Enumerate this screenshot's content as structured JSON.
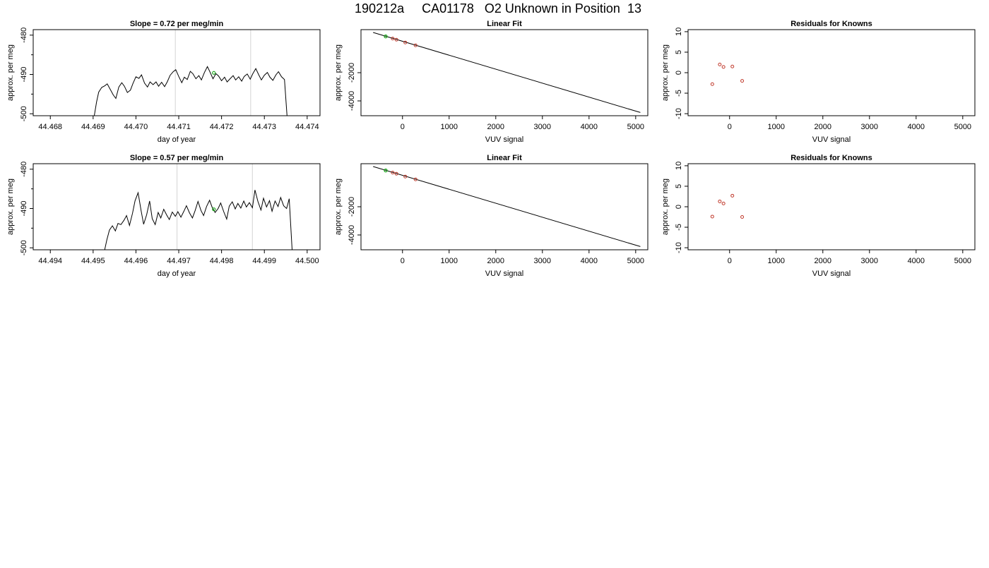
{
  "title": "190212a     CA01178   O2 Unknown in Position  13",
  "colors": {
    "trace": "#000000",
    "vline": "#d3d3d3",
    "known": "#c0392b",
    "unknown": "#22aa22"
  },
  "chart_data": [
    {
      "type": "line",
      "title": "Slope =  0.72  per meg/min",
      "xlabel": "day of year",
      "ylabel": "approx. per meg",
      "xlim": [
        44.4676,
        44.4743
      ],
      "ylim": [
        -500.5,
        -478.6
      ],
      "xticks": [
        "44.468",
        "44.469",
        "44.470",
        "44.471",
        "44.472",
        "44.473",
        "44.474"
      ],
      "yticks": [
        "-500",
        "-490",
        "-480"
      ],
      "vlines": [
        44.47092,
        44.47268
      ],
      "unknown_point": {
        "x": 44.47182,
        "y": -489.6
      },
      "trace": [
        [
          44.46902,
          -501
        ],
        [
          44.46908,
          -497
        ],
        [
          44.46913,
          -494.5
        ],
        [
          44.4692,
          -493.3
        ],
        [
          44.46927,
          -492.9
        ],
        [
          44.46933,
          -492.4
        ],
        [
          44.4694,
          -493.8
        ],
        [
          44.46947,
          -495.2
        ],
        [
          44.46953,
          -496.1
        ],
        [
          44.4696,
          -493.2
        ],
        [
          44.46967,
          -492.1
        ],
        [
          44.46973,
          -493.0
        ],
        [
          44.4698,
          -494.6
        ],
        [
          44.46987,
          -494.0
        ],
        [
          44.46993,
          -492.3
        ],
        [
          44.47,
          -490.6
        ],
        [
          44.47007,
          -491.0
        ],
        [
          44.47013,
          -490.1
        ],
        [
          44.4702,
          -492.2
        ],
        [
          44.47027,
          -493.2
        ],
        [
          44.47033,
          -491.9
        ],
        [
          44.4704,
          -492.6
        ],
        [
          44.47047,
          -491.9
        ],
        [
          44.47053,
          -493.0
        ],
        [
          44.4706,
          -492.0
        ],
        [
          44.47067,
          -493.1
        ],
        [
          44.47073,
          -491.9
        ],
        [
          44.4708,
          -490.2
        ],
        [
          44.47087,
          -489.3
        ],
        [
          44.47093,
          -488.8
        ],
        [
          44.471,
          -490.5
        ],
        [
          44.47107,
          -492.1
        ],
        [
          44.47113,
          -490.7
        ],
        [
          44.4712,
          -491.3
        ],
        [
          44.47127,
          -489.2
        ],
        [
          44.47133,
          -489.8
        ],
        [
          44.4714,
          -491.1
        ],
        [
          44.47147,
          -490.3
        ],
        [
          44.47153,
          -491.4
        ],
        [
          44.4716,
          -489.5
        ],
        [
          44.47167,
          -488.0
        ],
        [
          44.47173,
          -489.4
        ],
        [
          44.4718,
          -491.1
        ],
        [
          44.47187,
          -489.8
        ],
        [
          44.47193,
          -490.4
        ],
        [
          44.472,
          -491.6
        ],
        [
          44.47207,
          -490.7
        ],
        [
          44.47213,
          -491.9
        ],
        [
          44.4722,
          -491.1
        ],
        [
          44.47227,
          -490.3
        ],
        [
          44.47233,
          -491.4
        ],
        [
          44.4724,
          -490.6
        ],
        [
          44.47247,
          -491.7
        ],
        [
          44.47253,
          -490.5
        ],
        [
          44.4726,
          -489.9
        ],
        [
          44.47267,
          -491.2
        ],
        [
          44.47273,
          -489.8
        ],
        [
          44.4728,
          -488.5
        ],
        [
          44.47287,
          -490.1
        ],
        [
          44.47293,
          -491.4
        ],
        [
          44.473,
          -490.2
        ],
        [
          44.47307,
          -489.5
        ],
        [
          44.47313,
          -490.7
        ],
        [
          44.4732,
          -491.5
        ],
        [
          44.47327,
          -490.1
        ],
        [
          44.47333,
          -489.3
        ],
        [
          44.4734,
          -490.6
        ],
        [
          44.47347,
          -491.3
        ],
        [
          44.47353,
          -500.5
        ]
      ]
    },
    {
      "type": "scatter",
      "title": "Linear Fit",
      "xlabel": "VUV signal",
      "ylabel": "approx. per meg",
      "xlim": [
        -890,
        5260
      ],
      "ylim": [
        -5050,
        1050
      ],
      "xticks": [
        0,
        1000,
        2000,
        3000,
        4000,
        5000
      ],
      "yticks": [
        -4000,
        -2000
      ],
      "fit_line": [
        [
          -630,
          850
        ],
        [
          5100,
          -4820
        ]
      ],
      "knowns": [
        [
          -210,
          420
        ],
        [
          -130,
          340
        ],
        [
          60,
          140
        ],
        [
          280,
          -60
        ]
      ],
      "unknown": [
        -360,
        570
      ]
    },
    {
      "type": "scatter",
      "title": "Residuals for Knowns",
      "xlabel": "VUV signal",
      "ylabel": "approx. per meg",
      "xlim": [
        -890,
        5260
      ],
      "ylim": [
        -10.5,
        10.5
      ],
      "xticks": [
        0,
        1000,
        2000,
        3000,
        4000,
        5000
      ],
      "yticks": [
        -10,
        -5,
        0,
        5,
        10
      ],
      "knowns": [
        [
          -370,
          -2.8
        ],
        [
          -210,
          2.0
        ],
        [
          -130,
          1.4
        ],
        [
          60,
          1.5
        ],
        [
          270,
          -2.0
        ]
      ]
    },
    {
      "type": "line",
      "title": "Slope =  0.57  per meg/min",
      "xlabel": "day of year",
      "ylabel": "approx. per meg",
      "xlim": [
        44.4936,
        44.5003
      ],
      "ylim": [
        -500.5,
        -478.6
      ],
      "xticks": [
        "44.494",
        "44.495",
        "44.496",
        "44.497",
        "44.498",
        "44.499",
        "44.500"
      ],
      "yticks": [
        "-500",
        "-490",
        "-480"
      ],
      "vlines": [
        44.49696,
        44.49872
      ],
      "unknown_point": {
        "x": 44.49782,
        "y": -490.2
      },
      "trace": [
        [
          44.49526,
          -501
        ],
        [
          44.49532,
          -498
        ],
        [
          44.49538,
          -495.5
        ],
        [
          44.49545,
          -494.4
        ],
        [
          44.49552,
          -495.7
        ],
        [
          44.49558,
          -493.8
        ],
        [
          44.49565,
          -494.1
        ],
        [
          44.49572,
          -493.0
        ],
        [
          44.49578,
          -491.8
        ],
        [
          44.49585,
          -494.3
        ],
        [
          44.49592,
          -491.2
        ],
        [
          44.49598,
          -488.0
        ],
        [
          44.49605,
          -486.0
        ],
        [
          44.49612,
          -490.5
        ],
        [
          44.49618,
          -494.0
        ],
        [
          44.49625,
          -491.6
        ],
        [
          44.49632,
          -488.1
        ],
        [
          44.49638,
          -492.6
        ],
        [
          44.49645,
          -494.1
        ],
        [
          44.49652,
          -491.0
        ],
        [
          44.49658,
          -492.4
        ],
        [
          44.49665,
          -490.2
        ],
        [
          44.49672,
          -491.7
        ],
        [
          44.49678,
          -492.8
        ],
        [
          44.49685,
          -490.9
        ],
        [
          44.49692,
          -492.0
        ],
        [
          44.49698,
          -490.8
        ],
        [
          44.49705,
          -492.2
        ],
        [
          44.49712,
          -490.7
        ],
        [
          44.49718,
          -489.3
        ],
        [
          44.49725,
          -491.1
        ],
        [
          44.49732,
          -492.4
        ],
        [
          44.49738,
          -490.6
        ],
        [
          44.49745,
          -488.2
        ],
        [
          44.49752,
          -490.5
        ],
        [
          44.49758,
          -491.8
        ],
        [
          44.49765,
          -489.5
        ],
        [
          44.49772,
          -487.9
        ],
        [
          44.49778,
          -489.7
        ],
        [
          44.49785,
          -491.0
        ],
        [
          44.49792,
          -490.0
        ],
        [
          44.49798,
          -488.6
        ],
        [
          44.49805,
          -490.8
        ],
        [
          44.49812,
          -492.7
        ],
        [
          44.49818,
          -489.4
        ],
        [
          44.49825,
          -488.3
        ],
        [
          44.49832,
          -490.1
        ],
        [
          44.49838,
          -488.7
        ],
        [
          44.49845,
          -489.9
        ],
        [
          44.49852,
          -488.1
        ],
        [
          44.49858,
          -489.6
        ],
        [
          44.49865,
          -488.5
        ],
        [
          44.49872,
          -489.8
        ],
        [
          44.49878,
          -485.3
        ],
        [
          44.49885,
          -488.2
        ],
        [
          44.49892,
          -490.4
        ],
        [
          44.49898,
          -487.4
        ],
        [
          44.49905,
          -489.6
        ],
        [
          44.49912,
          -488.0
        ],
        [
          44.49918,
          -490.7
        ],
        [
          44.49925,
          -488.1
        ],
        [
          44.49932,
          -489.5
        ],
        [
          44.49938,
          -487.2
        ],
        [
          44.49945,
          -489.3
        ],
        [
          44.49952,
          -490.0
        ],
        [
          44.49958,
          -487.5
        ],
        [
          44.49965,
          -500.8
        ]
      ]
    },
    {
      "type": "scatter",
      "title": "Linear Fit",
      "xlabel": "VUV signal",
      "ylabel": "approx. per meg",
      "xlim": [
        -890,
        5260
      ],
      "ylim": [
        -5050,
        1050
      ],
      "xticks": [
        0,
        1000,
        2000,
        3000,
        4000,
        5000
      ],
      "yticks": [
        -4000,
        -2000
      ],
      "fit_line": [
        [
          -630,
          850
        ],
        [
          5100,
          -4820
        ]
      ],
      "knowns": [
        [
          -210,
          420
        ],
        [
          -130,
          340
        ],
        [
          60,
          140
        ],
        [
          280,
          -60
        ]
      ],
      "unknown": [
        -360,
        570
      ]
    },
    {
      "type": "scatter",
      "title": "Residuals for Knowns",
      "xlabel": "VUV signal",
      "ylabel": "approx. per meg",
      "xlim": [
        -890,
        5260
      ],
      "ylim": [
        -10.5,
        10.5
      ],
      "xticks": [
        0,
        1000,
        2000,
        3000,
        4000,
        5000
      ],
      "yticks": [
        -10,
        -5,
        0,
        5,
        10
      ],
      "knowns": [
        [
          -370,
          -2.4
        ],
        [
          -210,
          1.3
        ],
        [
          -130,
          0.8
        ],
        [
          60,
          2.7
        ],
        [
          270,
          -2.5
        ]
      ]
    }
  ]
}
